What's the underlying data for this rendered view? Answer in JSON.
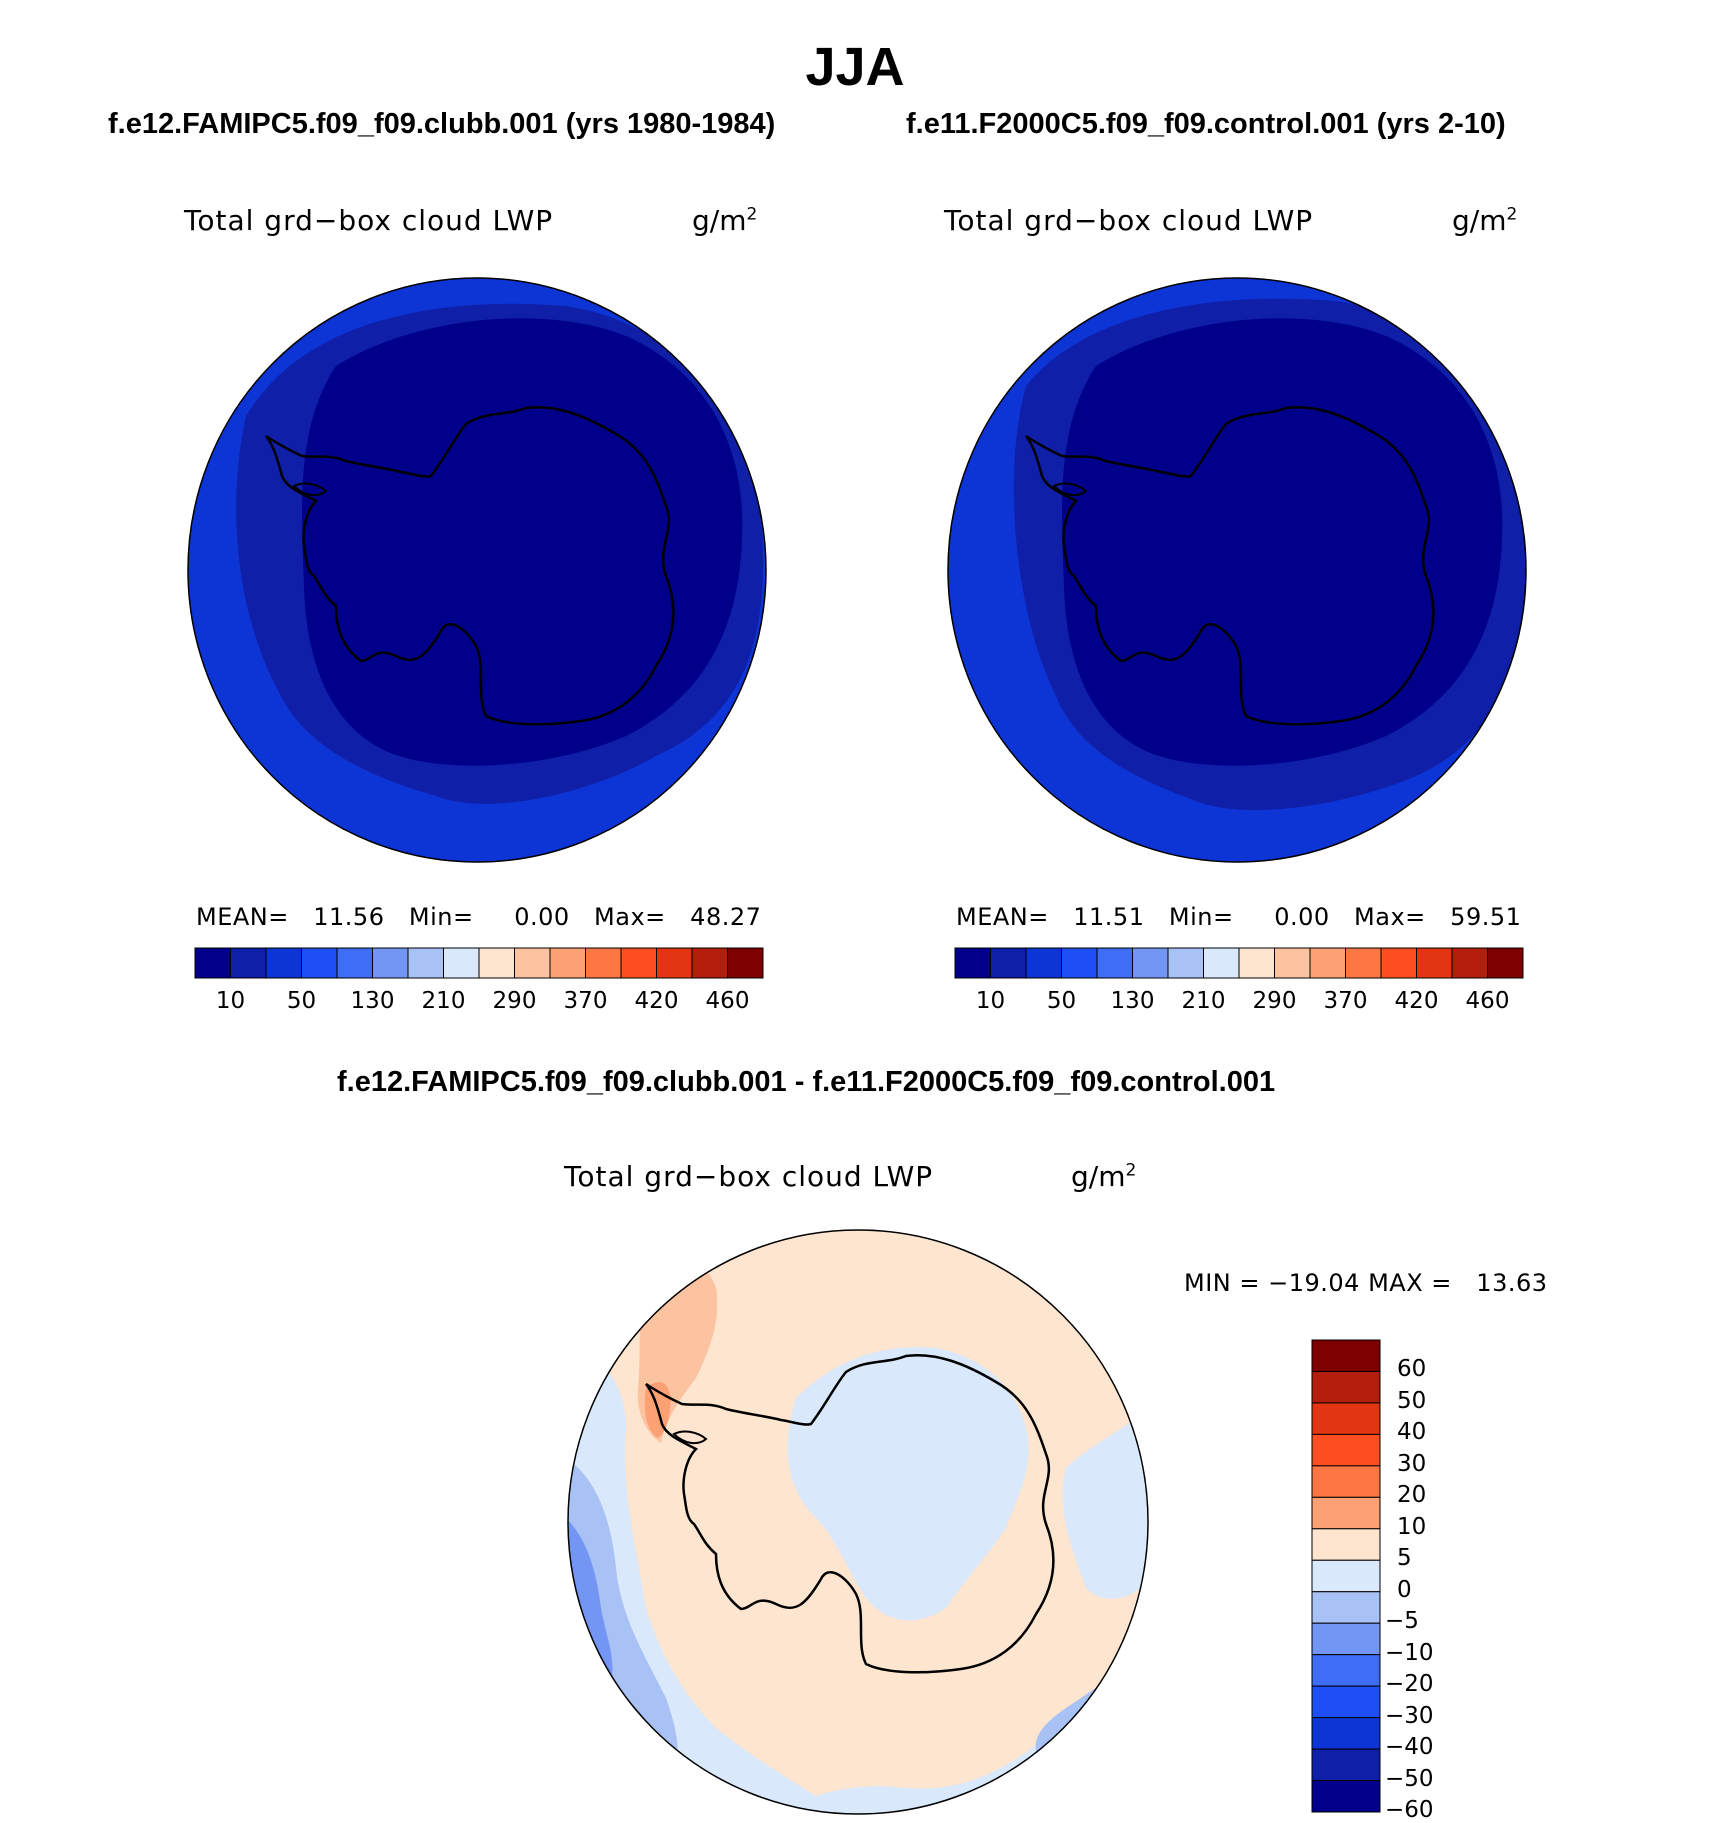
{
  "figure": {
    "title": "JJA",
    "diff_title": "f.e12.FAMIPC5.f09_f09.clubb.001 - f.e11.F2000C5.f09_f09.control.001"
  },
  "panels": [
    {
      "case_title": "f.e12.FAMIPC5.f09_f09.clubb.001 (yrs 1980-1984)",
      "variable": "Total grd−box cloud LWP",
      "units_base": "g/m",
      "units_exp": "2",
      "mean_label": "MEAN=",
      "mean": "11.56",
      "min_label": "Min=",
      "min": "0.00",
      "max_label": "Max=",
      "max": "48.27"
    },
    {
      "case_title": "f.e11.F2000C5.f09_f09.control.001 (yrs 2-10)",
      "variable": "Total grd−box cloud LWP",
      "units_base": "g/m",
      "units_exp": "2",
      "mean_label": "MEAN=",
      "mean": "11.51",
      "min_label": "Min=",
      "min": "0.00",
      "max_label": "Max=",
      "max": "59.51"
    }
  ],
  "diff_panel": {
    "variable": "Total grd−box cloud LWP",
    "units_base": "g/m",
    "units_exp": "2",
    "min_label": "MIN =",
    "min": "−19.04",
    "max_label": "MAX =",
    "max": "13.63"
  },
  "colorbar_abs": {
    "colors": [
      "#00008b",
      "#0f1fa8",
      "#0d35d6",
      "#1e4ff5",
      "#3d6ef5",
      "#7396f5",
      "#a9c2f5",
      "#d9e8fb",
      "#fde5cf",
      "#fcc3a1",
      "#fba174",
      "#fd7644",
      "#fc4e21",
      "#e23612",
      "#b31f0c",
      "#7e0000"
    ],
    "tick_labels": [
      "10",
      "50",
      "130",
      "210",
      "290",
      "370",
      "420",
      "460"
    ]
  },
  "colorbar_diff": {
    "colors": [
      "#7e0000",
      "#b31f0c",
      "#e23612",
      "#fc4e21",
      "#fd7644",
      "#fba174",
      "#fde5cf",
      "#d9e8fb",
      "#a9c2f5",
      "#7396f5",
      "#3d6ef5",
      "#1e4ff5",
      "#0d35d6",
      "#0f1fa8",
      "#00008b"
    ],
    "tick_labels": [
      "60",
      "50",
      "40",
      "30",
      "20",
      "10",
      "5",
      "0",
      "−5",
      "−10",
      "−20",
      "−30",
      "−40",
      "−50",
      "−60"
    ]
  }
}
